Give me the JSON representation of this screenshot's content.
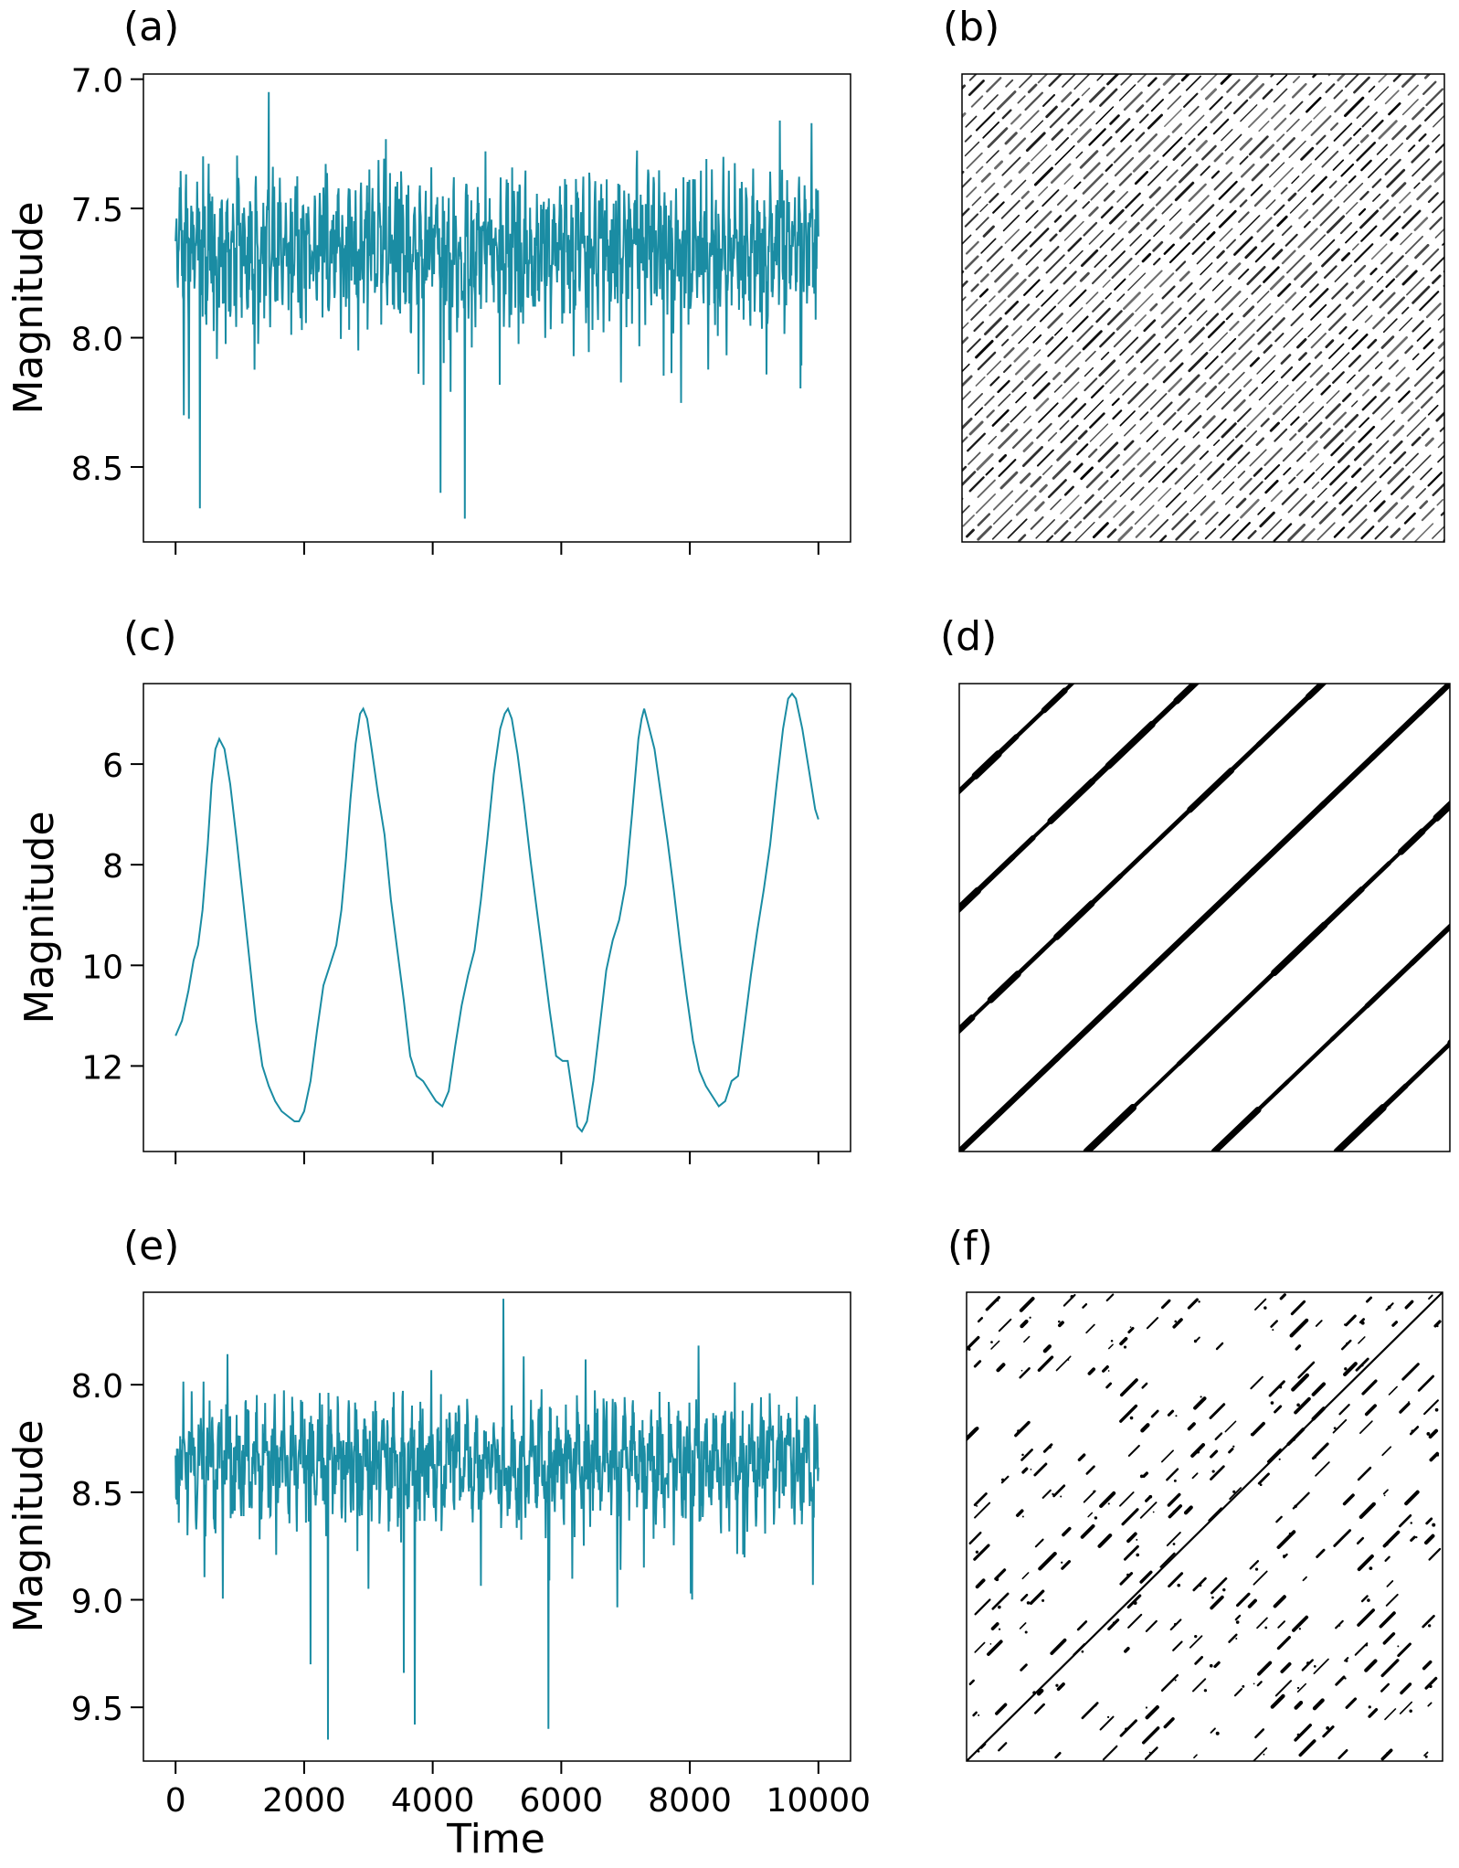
{
  "figure": {
    "panel_labels": [
      "(a)",
      "(b)",
      "(c)",
      "(d)",
      "(e)",
      "(f)"
    ],
    "line_color": "#1a8ca3",
    "rp_color": "#000000"
  },
  "chart_data": [
    {
      "panel": "(a)",
      "type": "line",
      "xlabel": "",
      "ylabel": "Magnitude",
      "xlim": [
        -500,
        10500
      ],
      "ylim": [
        8.79,
        6.98
      ],
      "y_inverted": true,
      "xticks": [
        0,
        2000,
        4000,
        6000,
        8000,
        10000
      ],
      "xtick_labels_visible": false,
      "yticks": [
        7.0,
        7.5,
        8.0,
        8.5
      ],
      "ytick_labels": [
        "7.0",
        "7.5",
        "8.0",
        "8.5"
      ],
      "series": [
        {
          "x_range": [
            0,
            10000
          ],
          "mean": 7.65,
          "pattern": "rapid irregular oscillation, roughly 110 cycles",
          "min": 7.05,
          "max": 8.7,
          "extremes": [
            [
              1450,
              7.05
            ],
            [
              4500,
              8.7
            ],
            [
              380,
              8.66
            ],
            [
              4120,
              8.6
            ],
            [
              9400,
              7.16
            ],
            [
              130,
              8.3
            ]
          ]
        }
      ]
    },
    {
      "panel": "(b)",
      "type": "heatmap",
      "description_kind": "recurrence plot",
      "pattern": "dense short diagonal line segments at regular spacing",
      "axes_visible": false
    },
    {
      "panel": "(c)",
      "type": "line",
      "xlabel": "",
      "ylabel": "Magnitude",
      "xlim": [
        -500,
        10500
      ],
      "ylim": [
        13.7,
        4.4
      ],
      "y_inverted": true,
      "xticks": [
        0,
        2000,
        4000,
        6000,
        8000,
        10000
      ],
      "xtick_labels_visible": false,
      "yticks": [
        6,
        8,
        10,
        12
      ],
      "ytick_labels": [
        "6",
        "8",
        "10",
        "12"
      ],
      "series": [
        {
          "points": [
            [
              0,
              11.4
            ],
            [
              100,
              11.1
            ],
            [
              200,
              10.5
            ],
            [
              280,
              9.9
            ],
            [
              350,
              9.6
            ],
            [
              420,
              8.9
            ],
            [
              500,
              7.6
            ],
            [
              560,
              6.4
            ],
            [
              620,
              5.7
            ],
            [
              680,
              5.5
            ],
            [
              760,
              5.7
            ],
            [
              850,
              6.4
            ],
            [
              950,
              7.5
            ],
            [
              1050,
              8.7
            ],
            [
              1150,
              9.9
            ],
            [
              1250,
              11.1
            ],
            [
              1350,
              12.0
            ],
            [
              1450,
              12.4
            ],
            [
              1550,
              12.7
            ],
            [
              1650,
              12.9
            ],
            [
              1750,
              13.0
            ],
            [
              1850,
              13.1
            ],
            [
              1920,
              13.1
            ],
            [
              2000,
              12.9
            ],
            [
              2100,
              12.3
            ],
            [
              2200,
              11.3
            ],
            [
              2300,
              10.4
            ],
            [
              2400,
              10.0
            ],
            [
              2500,
              9.6
            ],
            [
              2580,
              8.9
            ],
            [
              2650,
              7.9
            ],
            [
              2720,
              6.7
            ],
            [
              2800,
              5.6
            ],
            [
              2870,
              5.0
            ],
            [
              2920,
              4.9
            ],
            [
              2980,
              5.1
            ],
            [
              3050,
              5.7
            ],
            [
              3150,
              6.6
            ],
            [
              3250,
              7.4
            ],
            [
              3350,
              8.7
            ],
            [
              3450,
              9.7
            ],
            [
              3550,
              10.7
            ],
            [
              3650,
              11.8
            ],
            [
              3750,
              12.2
            ],
            [
              3850,
              12.3
            ],
            [
              3950,
              12.5
            ],
            [
              4050,
              12.7
            ],
            [
              4150,
              12.8
            ],
            [
              4250,
              12.5
            ],
            [
              4350,
              11.6
            ],
            [
              4450,
              10.8
            ],
            [
              4550,
              10.2
            ],
            [
              4650,
              9.7
            ],
            [
              4750,
              8.7
            ],
            [
              4850,
              7.5
            ],
            [
              4950,
              6.2
            ],
            [
              5050,
              5.3
            ],
            [
              5120,
              5.0
            ],
            [
              5170,
              4.9
            ],
            [
              5230,
              5.1
            ],
            [
              5320,
              5.8
            ],
            [
              5420,
              6.8
            ],
            [
              5520,
              7.9
            ],
            [
              5620,
              8.9
            ],
            [
              5720,
              9.9
            ],
            [
              5820,
              10.9
            ],
            [
              5920,
              11.8
            ],
            [
              6020,
              11.9
            ],
            [
              6100,
              11.9
            ],
            [
              6180,
              12.6
            ],
            [
              6250,
              13.2
            ],
            [
              6320,
              13.3
            ],
            [
              6400,
              13.1
            ],
            [
              6500,
              12.3
            ],
            [
              6600,
              11.2
            ],
            [
              6700,
              10.1
            ],
            [
              6800,
              9.5
            ],
            [
              6900,
              9.1
            ],
            [
              7000,
              8.4
            ],
            [
              7100,
              7.0
            ],
            [
              7200,
              5.5
            ],
            [
              7250,
              5.1
            ],
            [
              7290,
              4.9
            ],
            [
              7350,
              5.2
            ],
            [
              7450,
              5.7
            ],
            [
              7550,
              6.6
            ],
            [
              7650,
              7.5
            ],
            [
              7750,
              8.5
            ],
            [
              7850,
              9.6
            ],
            [
              7950,
              10.6
            ],
            [
              8050,
              11.5
            ],
            [
              8150,
              12.1
            ],
            [
              8250,
              12.4
            ],
            [
              8350,
              12.6
            ],
            [
              8450,
              12.8
            ],
            [
              8550,
              12.7
            ],
            [
              8650,
              12.3
            ],
            [
              8750,
              12.2
            ],
            [
              8850,
              11.2
            ],
            [
              8950,
              10.2
            ],
            [
              9050,
              9.3
            ],
            [
              9150,
              8.5
            ],
            [
              9250,
              7.6
            ],
            [
              9350,
              6.4
            ],
            [
              9450,
              5.3
            ],
            [
              9530,
              4.7
            ],
            [
              9590,
              4.6
            ],
            [
              9650,
              4.7
            ],
            [
              9750,
              5.3
            ],
            [
              9850,
              6.1
            ],
            [
              9950,
              6.9
            ],
            [
              10000,
              7.1
            ]
          ]
        }
      ]
    },
    {
      "panel": "(d)",
      "type": "heatmap",
      "description_kind": "recurrence plot",
      "pattern": "thick parallel diagonal bands, main diagonal plus offsets of about 2200 time units",
      "axes_visible": false
    },
    {
      "panel": "(e)",
      "type": "line",
      "xlabel": "Time",
      "ylabel": "Magnitude",
      "xlim": [
        -500,
        10500
      ],
      "ylim": [
        9.75,
        7.57
      ],
      "y_inverted": true,
      "xticks": [
        0,
        2000,
        4000,
        6000,
        8000,
        10000
      ],
      "xtick_labels": [
        "0",
        "2000",
        "4000",
        "6000",
        "8000",
        "10000"
      ],
      "xtick_labels_visible": true,
      "yticks": [
        8.0,
        8.5,
        9.0,
        9.5
      ],
      "ytick_labels": [
        "8.0",
        "8.5",
        "9.0",
        "9.5"
      ],
      "series": [
        {
          "x_range": [
            0,
            10000
          ],
          "mean": 8.35,
          "pattern": "irregular oscillation with deep dips",
          "min": 7.6,
          "max": 9.65,
          "extremes": [
            [
              5100,
              7.6
            ],
            [
              2370,
              9.65
            ],
            [
              5800,
              9.6
            ],
            [
              3720,
              9.58
            ],
            [
              3550,
              9.34
            ],
            [
              2100,
              9.3
            ]
          ]
        }
      ]
    },
    {
      "panel": "(f)",
      "type": "heatmap",
      "description_kind": "recurrence plot",
      "pattern": "thin main diagonal with scattered short diagonal segments in a grid-like arrangement",
      "axes_visible": false
    }
  ]
}
